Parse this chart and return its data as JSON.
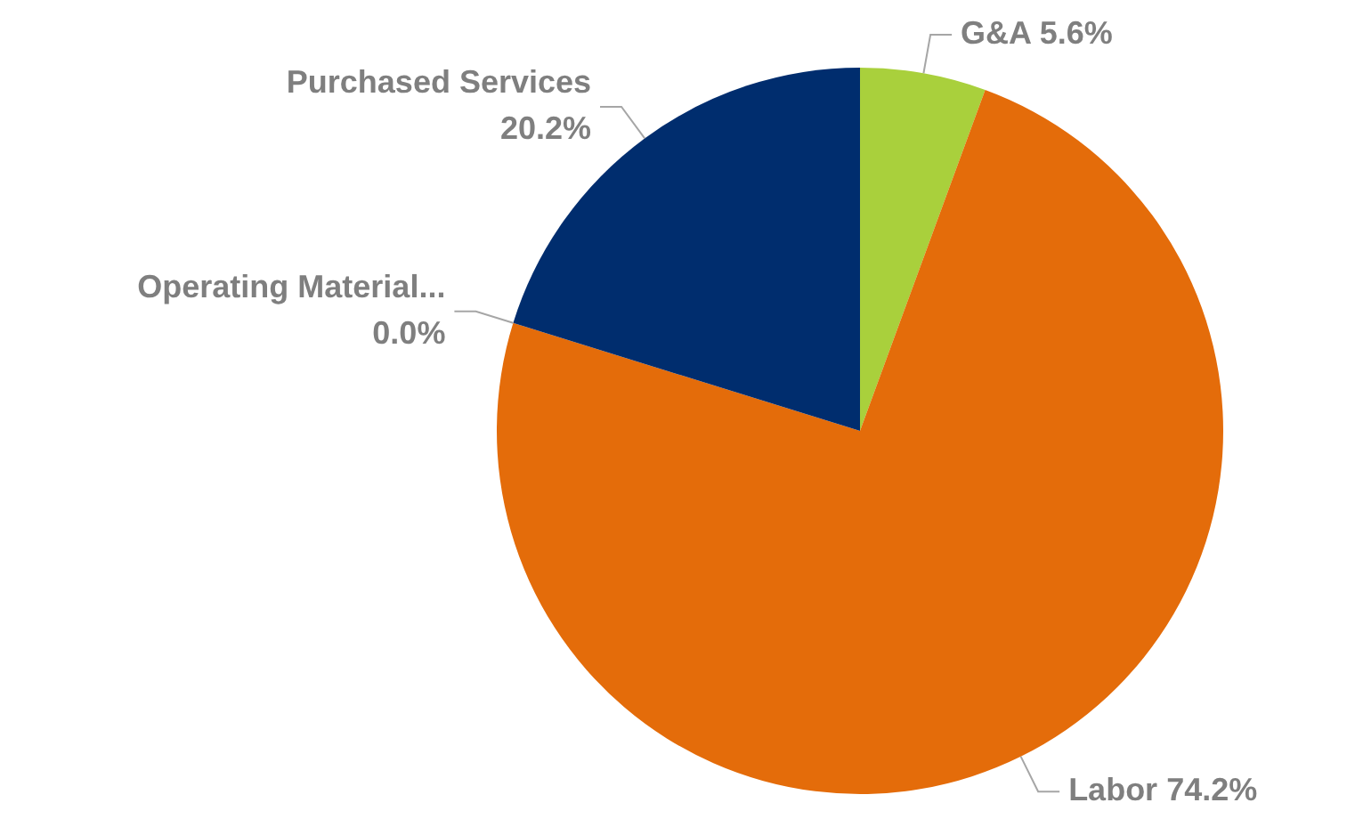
{
  "chart_data": {
    "type": "pie",
    "categories": [
      "G&A",
      "Labor",
      "Operating Material...",
      "Purchased Services"
    ],
    "values": [
      5.6,
      74.2,
      0.0,
      20.2
    ],
    "colors": [
      "#a9d03c",
      "#e46c0a",
      "#7f7f7f",
      "#002d6e"
    ],
    "value_labels": [
      "5.6%",
      "74.2%",
      "0.0%",
      "20.2%"
    ],
    "legend": false
  }
}
